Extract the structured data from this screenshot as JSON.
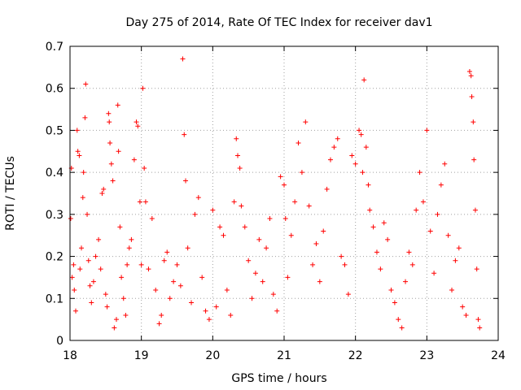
{
  "chart_data": {
    "type": "scatter",
    "title": "Day 275 of 2014, Rate Of TEC Index for receiver dav1",
    "xlabel": "GPS time / hours",
    "ylabel": "ROTI / TECUs",
    "xlim": [
      18,
      24
    ],
    "ylim": [
      0,
      0.7
    ],
    "xticks": [
      "18",
      "19",
      "20",
      "21",
      "22",
      "23",
      "24"
    ],
    "yticks": [
      "0",
      "0.1",
      "0.2",
      "0.3",
      "0.4",
      "0.5",
      "0.6",
      "0.7"
    ],
    "grid": true,
    "marker": "+",
    "color": "#ff0000",
    "series": [
      {
        "name": "ROTI",
        "points": [
          [
            18.01,
            0.29
          ],
          [
            18.02,
            0.41
          ],
          [
            18.03,
            0.15
          ],
          [
            18.05,
            0.18
          ],
          [
            18.06,
            0.12
          ],
          [
            18.08,
            0.07
          ],
          [
            18.1,
            0.5
          ],
          [
            18.11,
            0.45
          ],
          [
            18.13,
            0.44
          ],
          [
            18.14,
            0.17
          ],
          [
            18.16,
            0.22
          ],
          [
            18.18,
            0.34
          ],
          [
            18.19,
            0.4
          ],
          [
            18.21,
            0.53
          ],
          [
            18.22,
            0.61
          ],
          [
            18.24,
            0.3
          ],
          [
            18.26,
            0.19
          ],
          [
            18.28,
            0.13
          ],
          [
            18.3,
            0.09
          ],
          [
            18.33,
            0.14
          ],
          [
            18.36,
            0.2
          ],
          [
            18.4,
            0.24
          ],
          [
            18.43,
            0.17
          ],
          [
            18.45,
            0.35
          ],
          [
            18.47,
            0.36
          ],
          [
            18.5,
            0.11
          ],
          [
            18.52,
            0.08
          ],
          [
            18.54,
            0.54
          ],
          [
            18.55,
            0.52
          ],
          [
            18.56,
            0.47
          ],
          [
            18.58,
            0.42
          ],
          [
            18.6,
            0.38
          ],
          [
            18.62,
            0.03
          ],
          [
            18.65,
            0.05
          ],
          [
            18.67,
            0.56
          ],
          [
            18.68,
            0.45
          ],
          [
            18.7,
            0.27
          ],
          [
            18.72,
            0.15
          ],
          [
            18.75,
            0.1
          ],
          [
            18.78,
            0.06
          ],
          [
            18.8,
            0.18
          ],
          [
            18.83,
            0.22
          ],
          [
            18.86,
            0.24
          ],
          [
            18.9,
            0.43
          ],
          [
            18.93,
            0.52
          ],
          [
            18.95,
            0.51
          ],
          [
            18.98,
            0.33
          ],
          [
            19.0,
            0.18
          ],
          [
            19.02,
            0.6
          ],
          [
            19.04,
            0.41
          ],
          [
            19.06,
            0.33
          ],
          [
            19.1,
            0.17
          ],
          [
            19.15,
            0.29
          ],
          [
            19.2,
            0.12
          ],
          [
            19.25,
            0.04
          ],
          [
            19.28,
            0.06
          ],
          [
            19.32,
            0.19
          ],
          [
            19.36,
            0.21
          ],
          [
            19.4,
            0.1
          ],
          [
            19.45,
            0.14
          ],
          [
            19.5,
            0.18
          ],
          [
            19.55,
            0.13
          ],
          [
            19.58,
            0.67
          ],
          [
            19.6,
            0.49
          ],
          [
            19.62,
            0.38
          ],
          [
            19.65,
            0.22
          ],
          [
            19.7,
            0.09
          ],
          [
            19.75,
            0.3
          ],
          [
            19.8,
            0.34
          ],
          [
            19.85,
            0.15
          ],
          [
            19.9,
            0.07
          ],
          [
            19.95,
            0.05
          ],
          [
            20.0,
            0.31
          ],
          [
            20.05,
            0.08
          ],
          [
            20.1,
            0.27
          ],
          [
            20.15,
            0.25
          ],
          [
            20.2,
            0.12
          ],
          [
            20.25,
            0.06
          ],
          [
            20.3,
            0.33
          ],
          [
            20.33,
            0.48
          ],
          [
            20.35,
            0.44
          ],
          [
            20.38,
            0.41
          ],
          [
            20.4,
            0.32
          ],
          [
            20.45,
            0.27
          ],
          [
            20.5,
            0.19
          ],
          [
            20.55,
            0.1
          ],
          [
            20.6,
            0.16
          ],
          [
            20.65,
            0.24
          ],
          [
            20.7,
            0.14
          ],
          [
            20.75,
            0.22
          ],
          [
            20.8,
            0.29
          ],
          [
            20.85,
            0.11
          ],
          [
            20.9,
            0.07
          ],
          [
            20.95,
            0.39
          ],
          [
            21.0,
            0.37
          ],
          [
            21.02,
            0.29
          ],
          [
            21.05,
            0.15
          ],
          [
            21.1,
            0.25
          ],
          [
            21.15,
            0.33
          ],
          [
            21.2,
            0.47
          ],
          [
            21.25,
            0.4
          ],
          [
            21.3,
            0.52
          ],
          [
            21.35,
            0.32
          ],
          [
            21.4,
            0.18
          ],
          [
            21.45,
            0.23
          ],
          [
            21.5,
            0.14
          ],
          [
            21.55,
            0.26
          ],
          [
            21.6,
            0.36
          ],
          [
            21.65,
            0.43
          ],
          [
            21.7,
            0.46
          ],
          [
            21.75,
            0.48
          ],
          [
            21.8,
            0.2
          ],
          [
            21.85,
            0.18
          ],
          [
            21.9,
            0.11
          ],
          [
            21.95,
            0.44
          ],
          [
            22.0,
            0.42
          ],
          [
            22.05,
            0.5
          ],
          [
            22.08,
            0.49
          ],
          [
            22.1,
            0.4
          ],
          [
            22.12,
            0.62
          ],
          [
            22.15,
            0.46
          ],
          [
            22.18,
            0.37
          ],
          [
            22.2,
            0.31
          ],
          [
            22.25,
            0.27
          ],
          [
            22.3,
            0.21
          ],
          [
            22.35,
            0.17
          ],
          [
            22.4,
            0.28
          ],
          [
            22.45,
            0.24
          ],
          [
            22.5,
            0.12
          ],
          [
            22.55,
            0.09
          ],
          [
            22.6,
            0.05
          ],
          [
            22.65,
            0.03
          ],
          [
            22.7,
            0.14
          ],
          [
            22.75,
            0.21
          ],
          [
            22.8,
            0.18
          ],
          [
            22.85,
            0.31
          ],
          [
            22.9,
            0.4
          ],
          [
            22.95,
            0.33
          ],
          [
            23.0,
            0.5
          ],
          [
            23.05,
            0.26
          ],
          [
            23.1,
            0.16
          ],
          [
            23.15,
            0.3
          ],
          [
            23.2,
            0.37
          ],
          [
            23.25,
            0.42
          ],
          [
            23.3,
            0.25
          ],
          [
            23.35,
            0.12
          ],
          [
            23.4,
            0.19
          ],
          [
            23.45,
            0.22
          ],
          [
            23.5,
            0.08
          ],
          [
            23.55,
            0.06
          ],
          [
            23.6,
            0.64
          ],
          [
            23.62,
            0.63
          ],
          [
            23.63,
            0.58
          ],
          [
            23.65,
            0.52
          ],
          [
            23.66,
            0.43
          ],
          [
            23.68,
            0.31
          ],
          [
            23.7,
            0.17
          ],
          [
            23.72,
            0.05
          ],
          [
            23.74,
            0.03
          ]
        ]
      }
    ]
  }
}
